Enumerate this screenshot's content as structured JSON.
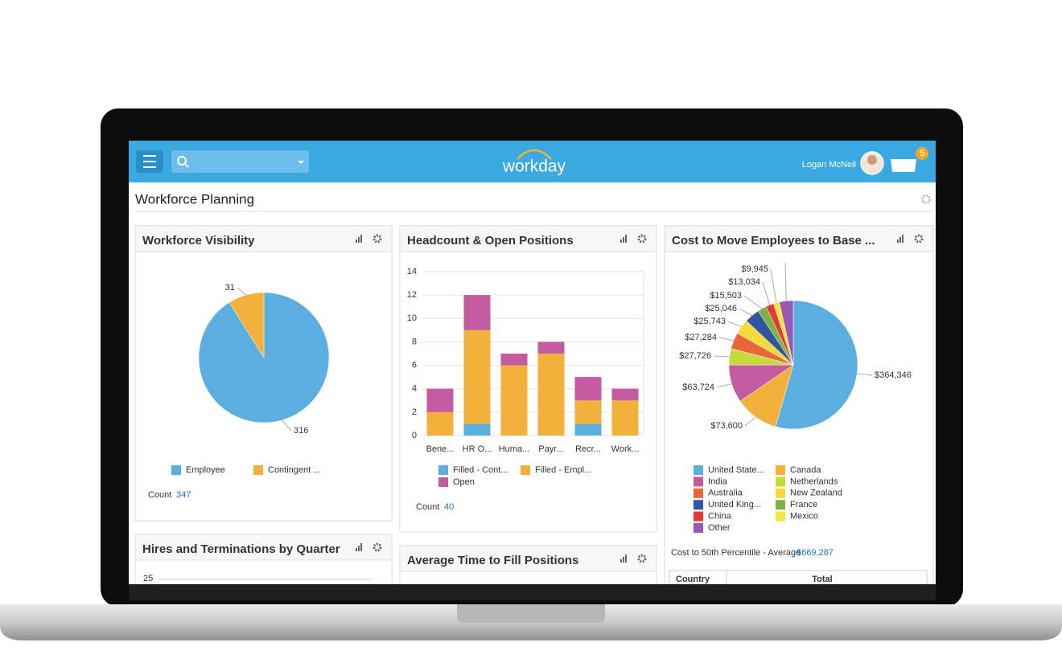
{
  "header": {
    "logo": "workday",
    "user_name": "Logan McNeil",
    "notification_count": 5
  },
  "page_title": "Workforce Planning",
  "chart_data": [
    {
      "type": "pie",
      "title": "Workforce Visibility",
      "categories": [
        "Employee",
        "Contingent ..."
      ],
      "values": [
        316,
        31
      ],
      "colors": [
        "#5aaee0",
        "#f2b13b"
      ],
      "total_label": "Count",
      "total": 347
    },
    {
      "type": "bar",
      "stacked": true,
      "title": "Headcount & Open Positions",
      "categories": [
        "Bene...",
        "HR O...",
        "Huma...",
        "Payr...",
        "Recr...",
        "Work..."
      ],
      "series": [
        {
          "name": "Filled - Cont...",
          "color": "#5aaee0",
          "values": [
            0,
            1,
            0,
            0,
            1,
            0
          ]
        },
        {
          "name": "Filled - Empl...",
          "color": "#f2b13b",
          "values": [
            2,
            8,
            6,
            7,
            2,
            3
          ]
        },
        {
          "name": "Open",
          "color": "#c45aa0",
          "values": [
            2,
            3,
            1,
            1,
            2,
            1
          ]
        }
      ],
      "ylim": [
        0,
        14
      ],
      "yticks": [
        0,
        2,
        4,
        6,
        8,
        10,
        12,
        14
      ],
      "grid": true,
      "total_label": "Count",
      "total": 40
    },
    {
      "type": "pie",
      "title": "Cost to Move Employees to Base ...",
      "categories": [
        "United State...",
        "Canada",
        "India",
        "Netherlands",
        "Australia",
        "New Zealand",
        "United King...",
        "France",
        "China",
        "Mexico",
        "Other"
      ],
      "values": [
        364346,
        73600,
        63724,
        27726,
        27284,
        25743,
        25046,
        15503,
        13034,
        9945,
        23336
      ],
      "value_labels": [
        "$364,346",
        "$73,600",
        "$63,724",
        "$27,726",
        "$27,284",
        "$25,743",
        "$25,046",
        "$15,503",
        "$13,034",
        "$9,945",
        null
      ],
      "colors": [
        "#5aaee0",
        "#f2b13b",
        "#c45aa0",
        "#c8d93c",
        "#e8663a",
        "#f9d93a",
        "#3355a0",
        "#7cb342",
        "#e53935",
        "#f5e642",
        "#9b59b6"
      ],
      "total_label": "Cost to 50th Percentile - Average",
      "total": "$669,287",
      "table_columns": [
        "Country",
        "Total"
      ]
    }
  ],
  "widgets": [
    {
      "title": "Hires and Terminations by Quarter",
      "yticks": [
        25
      ]
    },
    {
      "title": "Average Time to Fill Positions"
    }
  ]
}
